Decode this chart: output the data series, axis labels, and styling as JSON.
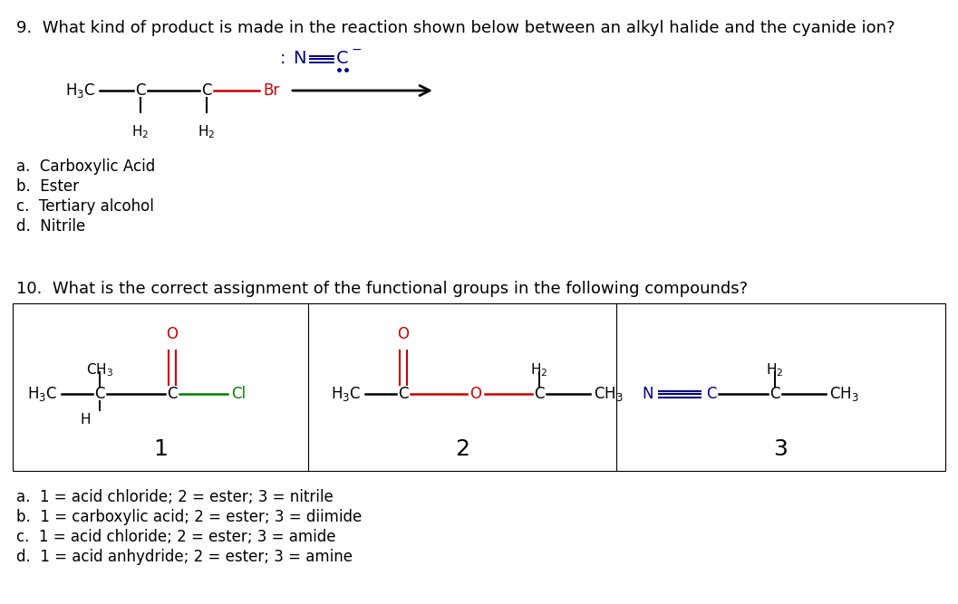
{
  "bg_color": "#ffffff",
  "q9_text": "9.  What kind of product is made in the reaction shown below between an alkyl halide and the cyanide ion?",
  "q9_options": [
    "a.  Carboxylic Acid",
    "b.  Ester",
    "c.  Tertiary alcohol",
    "d.  Nitrile"
  ],
  "q10_text": "10.  What is the correct assignment of the functional groups in the following compounds?",
  "q10_options": [
    "a.  1 = acid chloride; 2 = ester; 3 = nitrile",
    "b.  1 = carboxylic acid; 2 = ester; 3 = diimide",
    "c.  1 = acid chloride; 2 = ester; 3 = amide",
    "d.  1 = acid anhydride; 2 = ester; 3 = amine"
  ],
  "black": "#000000",
  "red": "#cc0000",
  "green": "#008000",
  "navy": "#00008B",
  "dark_red": "#8B0000",
  "font_q": 13,
  "font_opt": 12,
  "font_chem": 12,
  "font_sub": 10,
  "font_label": 18
}
